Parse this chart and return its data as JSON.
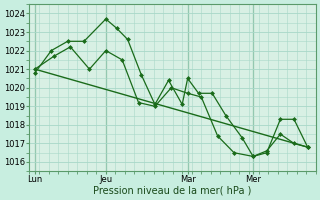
{
  "title": "Pression niveau de la mer( hPa )",
  "bg_color": "#c8eee0",
  "plot_bg_color": "#d8f0e4",
  "grid_color": "#a8d8c8",
  "line_color": "#1a6b1a",
  "marker_color": "#1a6b1a",
  "vline_color": "#2a7a3a",
  "ylim": [
    1015.5,
    1024.5
  ],
  "yticks": [
    1016,
    1017,
    1018,
    1019,
    1020,
    1021,
    1022,
    1023,
    1024
  ],
  "xlim": [
    0,
    10.5
  ],
  "xtick_labels": [
    "Lun",
    "Jeu",
    "Mar",
    "Mer"
  ],
  "xtick_positions": [
    0.2,
    2.8,
    5.8,
    8.2
  ],
  "vlines": [
    0.2,
    2.8,
    5.8,
    8.2
  ],
  "series1_x": [
    0.2,
    0.8,
    1.4,
    2.0,
    2.8,
    3.2,
    3.6,
    4.1,
    4.6,
    5.1,
    5.6,
    5.8,
    6.2,
    6.7,
    7.2,
    7.8,
    8.2,
    8.7,
    9.2,
    9.7,
    10.2
  ],
  "series1_y": [
    1020.8,
    1022.0,
    1022.5,
    1022.5,
    1023.7,
    1023.2,
    1022.6,
    1020.7,
    1019.1,
    1020.4,
    1019.1,
    1020.5,
    1019.7,
    1019.7,
    1018.5,
    1017.3,
    1016.3,
    1016.5,
    1018.3,
    1018.3,
    1016.8
  ],
  "series2_x": [
    0.2,
    0.9,
    1.5,
    2.2,
    2.8,
    3.4,
    4.0,
    4.6,
    5.2,
    5.8,
    6.3,
    6.9,
    7.5,
    8.2,
    8.7,
    9.2,
    9.7,
    10.2
  ],
  "series2_y": [
    1021.0,
    1021.7,
    1022.2,
    1021.0,
    1022.0,
    1021.5,
    1019.2,
    1019.0,
    1020.0,
    1019.7,
    1019.5,
    1017.4,
    1016.5,
    1016.3,
    1016.6,
    1017.5,
    1017.0,
    1016.8
  ],
  "trend_x": [
    0.2,
    10.2
  ],
  "trend_y": [
    1021.0,
    1016.8
  ]
}
